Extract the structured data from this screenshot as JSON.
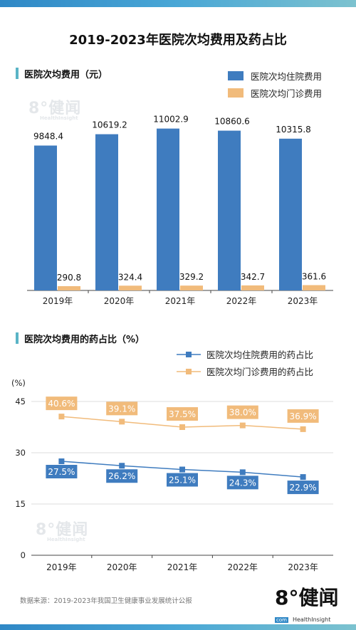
{
  "page": {
    "title": "2019-2023年医院次均费用及药占比",
    "source": "数据来源：2019-2023年我国卫生健康事业发展统计公报",
    "watermark_main": "8°健闻",
    "watermark_sub": "HealthInsight",
    "logo_main": "8°健闻",
    "logo_sub": "HealthInsight",
    "logo_badge": "com",
    "accent_color": "#5ab4c6"
  },
  "chart_data": [
    {
      "type": "bar",
      "title": "医院次均费用（元）",
      "categories": [
        "2019年",
        "2020年",
        "2021年",
        "2022年",
        "2023年"
      ],
      "series": [
        {
          "name": "医院次均住院费用",
          "color": "#3f7cbf",
          "values": [
            9848.4,
            10619.2,
            11002.9,
            10860.6,
            10315.8
          ],
          "labels": [
            "9848.4",
            "10619.2",
            "11002.9",
            "10860.6",
            "10315.8"
          ]
        },
        {
          "name": "医院次均门诊费用",
          "color": "#f1bb7b",
          "values": [
            290.8,
            324.4,
            329.2,
            342.7,
            361.6
          ],
          "labels": [
            "290.8",
            "324.4",
            "329.2",
            "342.7",
            "361.6"
          ]
        }
      ],
      "ylim": [
        0,
        12000
      ],
      "grid": false,
      "legend": "top-right"
    },
    {
      "type": "line",
      "title": "医院次均费用的药占比（%）",
      "ylabel": "(%)",
      "categories": [
        "2019年",
        "2020年",
        "2021年",
        "2022年",
        "2023年"
      ],
      "yticks": [
        "0",
        "15",
        "30",
        "45"
      ],
      "ylim": [
        0,
        45
      ],
      "series": [
        {
          "name": "医院次均住院费用的药占比",
          "color": "#3f7cbf",
          "values": [
            27.5,
            26.2,
            25.1,
            24.3,
            22.9
          ],
          "labels": [
            "27.5%",
            "26.2%",
            "25.1%",
            "24.3%",
            "22.9%"
          ]
        },
        {
          "name": "医院次均门诊费用的药占比",
          "color": "#f1bb7b",
          "values": [
            40.6,
            39.1,
            37.5,
            38.0,
            36.9
          ],
          "labels": [
            "40.6%",
            "39.1%",
            "37.5%",
            "38.0%",
            "36.9%"
          ]
        }
      ],
      "grid": true,
      "legend": "top-right"
    }
  ]
}
